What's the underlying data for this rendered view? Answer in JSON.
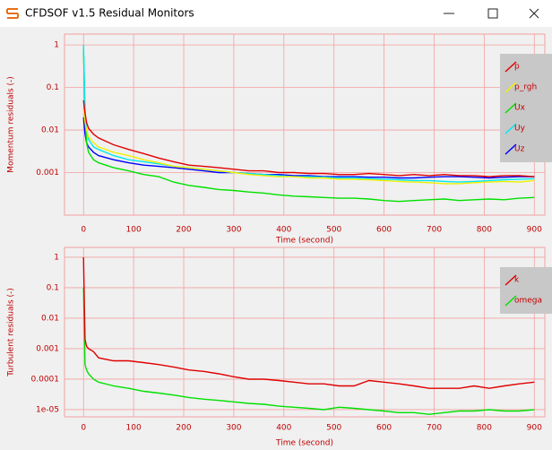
{
  "window": {
    "title": "CFDSOF v1.5 Residual Monitors"
  },
  "chart_data": [
    {
      "type": "line",
      "ylabel": "Momentum residuals (-)",
      "xlabel": "Time (second)",
      "log_y": true,
      "grid": true,
      "legend": "upper right",
      "xlim": [
        -38,
        921
      ],
      "xticks": [
        0,
        100,
        200,
        300,
        400,
        500,
        600,
        700,
        800,
        900
      ],
      "ylim": [
        0.0001,
        1.8
      ],
      "yticks": [
        0.001,
        0.01,
        0.1,
        1
      ],
      "x": [
        0,
        3,
        6,
        10,
        20,
        30,
        60,
        90,
        120,
        150,
        180,
        210,
        240,
        270,
        300,
        330,
        360,
        390,
        420,
        450,
        480,
        510,
        540,
        570,
        600,
        630,
        660,
        690,
        720,
        750,
        780,
        810,
        840,
        870,
        900
      ],
      "series": [
        {
          "name": "Uz",
          "color": "#0000ff",
          "values": [
            0.02,
            0.008,
            0.005,
            0.004,
            0.003,
            0.0025,
            0.002,
            0.0017,
            0.0015,
            0.0014,
            0.0013,
            0.0012,
            0.0011,
            0.001,
            0.001,
            0.00095,
            0.0009,
            0.0009,
            0.00085,
            0.00085,
            0.0008,
            0.0008,
            0.0008,
            0.00078,
            0.00078,
            0.00075,
            0.00075,
            0.00078,
            0.0008,
            0.0008,
            0.00078,
            0.00075,
            0.00078,
            0.0008,
            0.0008
          ]
        },
        {
          "name": "Ux",
          "color": "#00e000",
          "values": [
            0.8,
            0.02,
            0.005,
            0.003,
            0.002,
            0.0017,
            0.0013,
            0.0011,
            0.0009,
            0.0008,
            0.0006,
            0.0005,
            0.00045,
            0.0004,
            0.00038,
            0.00035,
            0.00033,
            0.0003,
            0.00028,
            0.00027,
            0.00026,
            0.00025,
            0.00025,
            0.00024,
            0.00022,
            0.00021,
            0.00022,
            0.00023,
            0.00024,
            0.00022,
            0.00023,
            0.00024,
            0.00023,
            0.00025,
            0.00026
          ]
        },
        {
          "name": "Uy",
          "color": "#00e8f0",
          "values": [
            1,
            0.03,
            0.01,
            0.006,
            0.004,
            0.0035,
            0.0025,
            0.002,
            0.0018,
            0.0016,
            0.0014,
            0.0013,
            0.0012,
            0.0011,
            0.001,
            0.00095,
            0.0009,
            0.00085,
            0.0008,
            0.0008,
            0.00078,
            0.00075,
            0.00075,
            0.00072,
            0.0007,
            0.00068,
            0.00065,
            0.00065,
            0.00062,
            0.0006,
            0.00062,
            0.00065,
            0.00068,
            0.0007,
            0.00072
          ]
        },
        {
          "name": "p_rgh",
          "color": "#f0f000",
          "values": [
            0.03,
            0.015,
            0.01,
            0.007,
            0.005,
            0.004,
            0.003,
            0.0025,
            0.002,
            0.0017,
            0.0014,
            0.0013,
            0.0012,
            0.0011,
            0.001,
            0.0009,
            0.00085,
            0.0008,
            0.0008,
            0.00075,
            0.00075,
            0.0007,
            0.0007,
            0.00068,
            0.00065,
            0.00062,
            0.0006,
            0.00058,
            0.00055,
            0.00055,
            0.00058,
            0.0006,
            0.00062,
            0.0006,
            0.00065
          ]
        },
        {
          "name": "p",
          "color": "#e00000",
          "values": [
            0.05,
            0.025,
            0.015,
            0.011,
            0.008,
            0.0065,
            0.0045,
            0.0035,
            0.0028,
            0.0022,
            0.0018,
            0.0015,
            0.0014,
            0.0013,
            0.0012,
            0.0011,
            0.0011,
            0.001,
            0.001,
            0.00095,
            0.00095,
            0.0009,
            0.0009,
            0.00095,
            0.0009,
            0.00085,
            0.0009,
            0.00085,
            0.0009,
            0.00085,
            0.00085,
            0.0008,
            0.00085,
            0.00085,
            0.0008
          ]
        }
      ],
      "legend_order": [
        "p",
        "p_rgh",
        "Ux",
        "Uy",
        "Uz"
      ]
    },
    {
      "type": "line",
      "ylabel": "Turbulent residuals (-)",
      "xlabel": "Time (second)",
      "log_y": true,
      "grid": true,
      "legend": "upper right",
      "xlim": [
        -38,
        921
      ],
      "xticks": [
        0,
        100,
        200,
        300,
        400,
        500,
        600,
        700,
        800,
        900
      ],
      "ylim": [
        5.8e-06,
        2.1
      ],
      "yticks": [
        {
          "value": 1e-05,
          "label": "1e-05"
        },
        0.0001,
        0.001,
        0.01,
        0.1,
        1
      ],
      "x": [
        0,
        3,
        6,
        10,
        20,
        30,
        60,
        90,
        120,
        150,
        180,
        210,
        240,
        270,
        300,
        330,
        360,
        390,
        420,
        450,
        480,
        510,
        540,
        570,
        600,
        630,
        660,
        690,
        720,
        750,
        780,
        810,
        840,
        870,
        900
      ],
      "series": [
        {
          "name": "omega",
          "color": "#00e000",
          "values": [
            0.1,
            0.0003,
            0.0002,
            0.00015,
            0.0001,
            8e-05,
            6e-05,
            5e-05,
            4e-05,
            3.5e-05,
            3e-05,
            2.5e-05,
            2.2e-05,
            2e-05,
            1.8e-05,
            1.6e-05,
            1.5e-05,
            1.3e-05,
            1.2e-05,
            1.1e-05,
            1e-05,
            1.2e-05,
            1.1e-05,
            1e-05,
            9e-06,
            8e-06,
            8e-06,
            7e-06,
            8e-06,
            9e-06,
            9e-06,
            1e-05,
            9e-06,
            9e-06,
            1e-05
          ]
        },
        {
          "name": "k",
          "color": "#e00000",
          "values": [
            1,
            0.002,
            0.0012,
            0.001,
            0.0008,
            0.0005,
            0.0004,
            0.0004,
            0.00035,
            0.0003,
            0.00025,
            0.0002,
            0.00018,
            0.00015,
            0.00012,
            0.0001,
            0.0001,
            9e-05,
            8e-05,
            7e-05,
            7e-05,
            6e-05,
            6e-05,
            9e-05,
            8e-05,
            7e-05,
            6e-05,
            5e-05,
            5e-05,
            5e-05,
            6e-05,
            5e-05,
            6e-05,
            7e-05,
            8e-05
          ]
        }
      ],
      "legend_order": [
        "k",
        "omega"
      ]
    }
  ]
}
